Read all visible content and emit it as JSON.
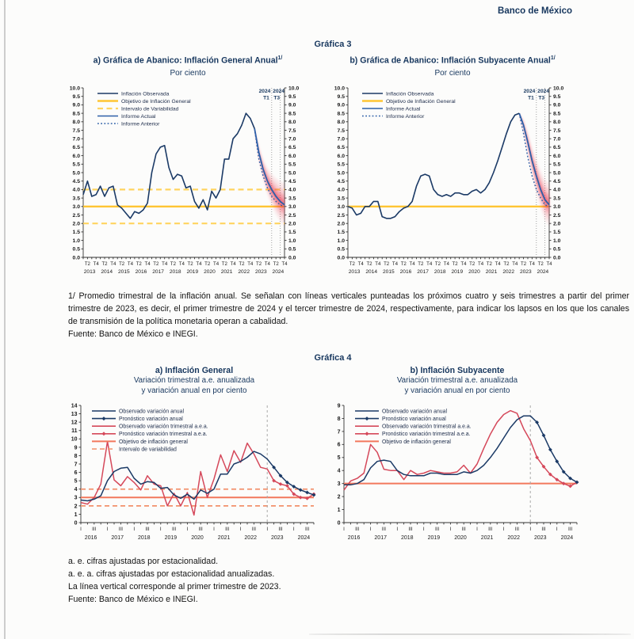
{
  "page": {
    "brand": "Banco de México"
  },
  "grafica3": {
    "title": "Gráfica 3",
    "footnote": "1/ Promedio trimestral de la inflación anual. Se señalan con líneas verticales punteadas los próximos cuatro y seis trimestres a partir del primer trimestre de 2023, es decir, el primer trimestre de 2024 y el tercer trimestre de 2024, respectivamente, para indicar los lapsos en los que los canales de transmisión de la política monetaria operan a cabalidad.",
    "fuente": "Fuente: Banco de México e INEGI."
  },
  "grafica4": {
    "title": "Gráfica 4",
    "footnotes": [
      "a. e. cifras ajustadas por estacionalidad.",
      "a. e. a. cifras ajustadas por estacionalidad anualizadas.",
      "La línea vertical corresponde al primer trimestre de 2023.",
      "Fuente: Banco de México e INEGI."
    ]
  },
  "chart_data": [
    {
      "id": "fan-general",
      "type": "fan-line",
      "title": "a) Gráfica de Abanico: Inflación General Anual",
      "title_sup": "1/",
      "subtitle": "Por ciento",
      "ylim": [
        0,
        10
      ],
      "ystep": 0.5,
      "grid": false,
      "years": [
        2013,
        2014,
        2015,
        2016,
        2017,
        2018,
        2019,
        2020,
        2021,
        2022,
        2023,
        2024
      ],
      "quarter_tick_labels": [
        "T2",
        "T4"
      ],
      "observed": [
        3.7,
        4.5,
        3.6,
        3.7,
        4.2,
        3.6,
        4.1,
        4.2,
        3.1,
        2.9,
        2.6,
        2.3,
        2.7,
        2.6,
        2.8,
        3.2,
        5.0,
        6.1,
        6.5,
        6.6,
        5.3,
        4.6,
        4.9,
        4.8,
        4.1,
        4.2,
        3.3,
        2.9,
        3.4,
        2.8,
        3.9,
        3.5,
        4.0,
        5.8,
        5.8,
        7.0,
        7.3,
        7.8,
        8.5,
        8.2,
        7.6
      ],
      "target": 3.0,
      "band": [
        2.0,
        4.0
      ],
      "forecast_start": 40,
      "forecast_actual": [
        7.6,
        6.2,
        5.2,
        4.5,
        4.0,
        3.6,
        3.3,
        3.1
      ],
      "forecast_prev": [
        7.6,
        5.8,
        4.8,
        4.1,
        3.6,
        3.3,
        3.1,
        3.0
      ],
      "fan_halfwidth": [
        0,
        0.3,
        0.55,
        0.75,
        0.9,
        1.05,
        1.15,
        1.25
      ],
      "vlines": [
        44,
        46
      ],
      "vline_labels": [
        {
          "top": "2024",
          "bottom": "T1"
        },
        {
          "top": "2024",
          "bottom": "T3"
        }
      ],
      "colors": {
        "observed": "#1B3A66",
        "target": "#FFC533",
        "band": "#FFD45F",
        "forecast": "#2C5FA8",
        "fan": "#E8384F"
      },
      "legend": [
        {
          "label": "Inflación Observada",
          "color": "#1B3A66",
          "dash": "solid"
        },
        {
          "label": "Objetivo de Inflación General",
          "color": "#FFC533",
          "dash": "solid",
          "width": 2.4
        },
        {
          "label": "Intervalo de Variabilidad",
          "color": "#FFD45F",
          "dash": "ydash",
          "width": 2.2
        },
        {
          "label": "Informe Actual",
          "color": "#2C5FA8",
          "dash": "solid"
        },
        {
          "label": "Informe Anterior",
          "color": "#2C5FA8",
          "dash": "dotted"
        }
      ]
    },
    {
      "id": "fan-subyacente",
      "type": "fan-line",
      "title": "b) Gráfica de Abanico: Inflación Subyacente Anual",
      "title_sup": "1/",
      "subtitle": "Por ciento",
      "ylim": [
        0,
        10
      ],
      "ystep": 0.5,
      "grid": false,
      "years": [
        2013,
        2014,
        2015,
        2016,
        2017,
        2018,
        2019,
        2020,
        2021,
        2022,
        2023,
        2024
      ],
      "quarter_tick_labels": [
        "T2",
        "T4"
      ],
      "observed": [
        3.0,
        2.9,
        2.5,
        2.6,
        3.0,
        3.0,
        3.3,
        3.3,
        2.4,
        2.3,
        2.3,
        2.4,
        2.7,
        2.9,
        3.0,
        3.3,
        4.2,
        4.8,
        4.9,
        4.8,
        4.0,
        3.7,
        3.6,
        3.7,
        3.6,
        3.8,
        3.8,
        3.7,
        3.7,
        3.9,
        4.0,
        3.8,
        4.0,
        4.4,
        5.0,
        5.7,
        6.5,
        7.3,
        8.0,
        8.4,
        8.5
      ],
      "target": 3.0,
      "forecast_start": 40,
      "forecast_actual": [
        8.5,
        7.8,
        6.8,
        5.7,
        4.8,
        4.0,
        3.4,
        3.1
      ],
      "forecast_prev": [
        8.5,
        7.3,
        5.9,
        4.8,
        4.0,
        3.5,
        3.1,
        3.0
      ],
      "fan_halfwidth": [
        0,
        0.3,
        0.55,
        0.75,
        0.9,
        1.05,
        1.15,
        1.25
      ],
      "vlines": [
        44,
        46
      ],
      "vline_labels": [
        {
          "top": "2024",
          "bottom": "T1"
        },
        {
          "top": "2024",
          "bottom": "T3"
        }
      ],
      "colors": {
        "observed": "#1B3A66",
        "target": "#FFC533",
        "forecast": "#2C5FA8",
        "fan": "#E8384F"
      },
      "legend": [
        {
          "label": "Inflación Observada",
          "color": "#1B3A66",
          "dash": "solid"
        },
        {
          "label": "Objetivo de Inflación General",
          "color": "#FFC533",
          "dash": "solid",
          "width": 2.4
        },
        {
          "label": "Informe Actual",
          "color": "#2C5FA8",
          "dash": "solid"
        },
        {
          "label": "Informe Anterior",
          "color": "#2C5FA8",
          "dash": "dotted"
        }
      ]
    },
    {
      "id": "g4-general",
      "type": "forecast-line",
      "title": "a) Inflación General",
      "subtitle1": "Variación trimestral a.e. anualizada",
      "subtitle2": "y variación anual en por ciento",
      "ylim": [
        0,
        14
      ],
      "ystep": 1,
      "grid": false,
      "years": [
        2016,
        2017,
        2018,
        2019,
        2020,
        2021,
        2022,
        2023,
        2024
      ],
      "quarter_tick_labels": [
        "I",
        "III"
      ],
      "annual_observed": [
        2.7,
        2.6,
        2.8,
        3.2,
        5.0,
        6.1,
        6.5,
        6.6,
        5.3,
        4.6,
        4.9,
        4.8,
        4.1,
        4.2,
        3.3,
        2.9,
        3.4,
        2.8,
        3.9,
        3.5,
        4.0,
        5.8,
        5.8,
        7.0,
        7.3,
        7.8,
        8.5,
        8.2,
        7.6
      ],
      "annual_forecast": [
        7.6,
        6.6,
        5.6,
        4.8,
        4.3,
        3.9,
        3.6,
        3.3
      ],
      "quarterly_observed": [
        2.4,
        2.2,
        3.0,
        4.6,
        9.7,
        5.1,
        4.4,
        5.5,
        4.8,
        3.9,
        5.6,
        4.6,
        4.4,
        2.0,
        3.5,
        2.0,
        3.6,
        0.9,
        6.1,
        3.0,
        5.2,
        8.1,
        6.1,
        8.6,
        7.2,
        9.5,
        8.2,
        6.6,
        6.4
      ],
      "quarterly_forecast": [
        6.4,
        5.0,
        4.6,
        4.4,
        3.4,
        3.0,
        2.9,
        3.4
      ],
      "forecast_start": 28,
      "target": 3.0,
      "band": [
        2.0,
        4.0
      ],
      "vline": 28,
      "colors": {
        "annual": "#1B3A66",
        "quarterly": "#D5485A",
        "target": "#F2785C",
        "band": "#F2906B",
        "vline": "#a9a9a9"
      },
      "legend": [
        {
          "label": "Observado variación anual",
          "color": "#1B3A66",
          "dash": "solid"
        },
        {
          "label": "Pronóstico variación anual",
          "color": "#1B3A66",
          "dash": "solid",
          "marker": true
        },
        {
          "label": "Observado variación trimestral a.e.a.",
          "color": "#D5485A",
          "dash": "solid"
        },
        {
          "label": "Pronóstico variación trimestral a.e.a.",
          "color": "#D5485A",
          "dash": "solid",
          "marker": true
        },
        {
          "label": "Objetivo de inflación general",
          "color": "#F2785C",
          "dash": "solid",
          "width": 2
        },
        {
          "label": "Intervalo de variabilidad",
          "color": "#F2906B",
          "dash": "dashed",
          "width": 1.6
        }
      ]
    },
    {
      "id": "g4-subyacente",
      "type": "forecast-line",
      "title": "b) Inflación Subyacente",
      "subtitle1": "Variación trimestral a.e. anualizada",
      "subtitle2": "y variación anual en por ciento",
      "ylim": [
        0,
        9
      ],
      "ystep": 1,
      "grid": false,
      "years": [
        2016,
        2017,
        2018,
        2019,
        2020,
        2021,
        2022,
        2023,
        2024
      ],
      "quarter_tick_labels": [
        "I",
        "III"
      ],
      "annual_observed": [
        2.9,
        2.9,
        3.0,
        3.3,
        4.2,
        4.7,
        4.8,
        4.7,
        4.0,
        3.7,
        3.6,
        3.6,
        3.6,
        3.8,
        3.8,
        3.7,
        3.7,
        3.7,
        3.9,
        3.8,
        4.0,
        4.4,
        5.0,
        5.7,
        6.5,
        7.3,
        7.9,
        8.2,
        8.2
      ],
      "annual_forecast": [
        8.2,
        7.7,
        6.7,
        5.6,
        4.7,
        3.9,
        3.4,
        3.1
      ],
      "quarterly_observed": [
        2.5,
        3.2,
        3.4,
        3.8,
        6.0,
        5.4,
        4.1,
        4.0,
        4.0,
        3.3,
        4.0,
        3.7,
        3.8,
        4.0,
        3.9,
        3.8,
        3.8,
        3.9,
        4.4,
        3.8,
        4.5,
        5.7,
        6.8,
        7.7,
        8.3,
        8.6,
        8.4,
        7.2,
        6.3
      ],
      "quarterly_forecast": [
        6.3,
        5.0,
        4.3,
        3.7,
        3.3,
        3.0,
        2.8,
        3.1
      ],
      "forecast_start": 28,
      "target": 3.0,
      "vline": 28,
      "colors": {
        "annual": "#1B3A66",
        "quarterly": "#D5485A",
        "target": "#F2785C",
        "vline": "#a9a9a9"
      },
      "legend": [
        {
          "label": "Observado variación anual",
          "color": "#1B3A66",
          "dash": "solid"
        },
        {
          "label": "Pronóstico variación anual",
          "color": "#1B3A66",
          "dash": "solid",
          "marker": true
        },
        {
          "label": "Observado variación trimestral a.e.a.",
          "color": "#D5485A",
          "dash": "solid"
        },
        {
          "label": "Pronóstico variación trimestral a.e.a.",
          "color": "#D5485A",
          "dash": "solid",
          "marker": true
        },
        {
          "label": "Objetivo de inflación general",
          "color": "#F2785C",
          "dash": "solid",
          "width": 2
        }
      ]
    }
  ]
}
